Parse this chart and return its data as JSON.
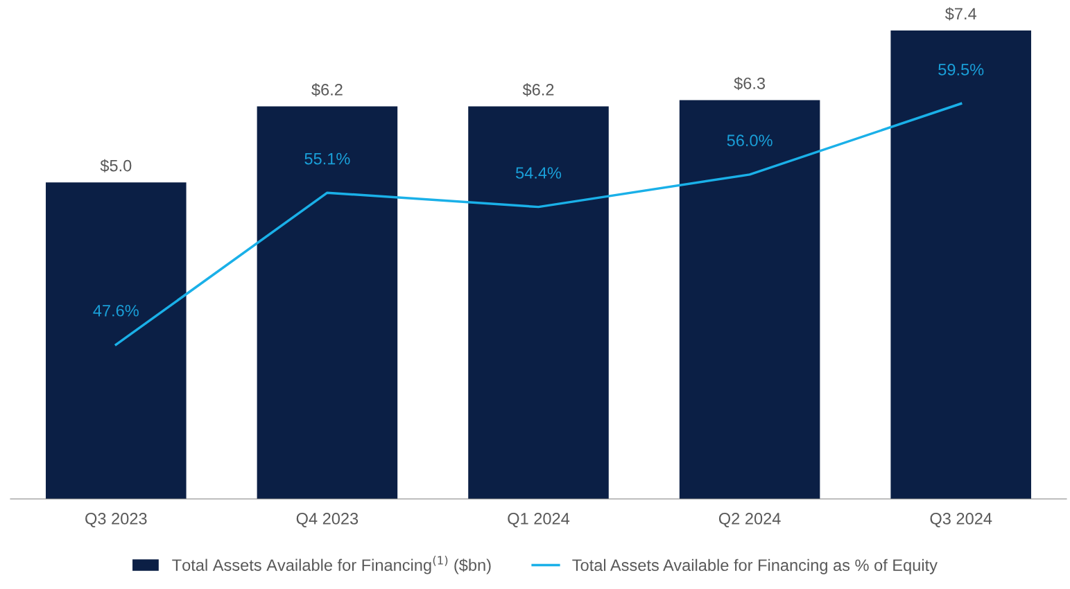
{
  "chart_data": {
    "type": "bar",
    "categories": [
      "Q3 2023",
      "Q4 2023",
      "Q1 2024",
      "Q2 2024",
      "Q3 2024"
    ],
    "series": [
      {
        "name": "Total Assets Available for Financing$^{(1)}$ ($bn)",
        "color": "#0b1f45",
        "values": [
          5.0,
          6.2,
          6.2,
          6.3,
          7.4
        ],
        "value_labels": [
          "$5.0",
          "$6.2",
          "$6.2",
          "$6.3",
          "$7.4"
        ]
      },
      {
        "name": "Total Assets Available for Financing as % of Equity",
        "type": "line",
        "axis": "y2",
        "color": "#1ab0e8",
        "values": [
          47.6,
          55.1,
          54.4,
          56.0,
          59.5
        ],
        "value_labels": [
          "47.6%",
          "55.1%",
          "54.4%",
          "56.0%",
          "59.5%"
        ]
      }
    ],
    "tick_labels": "x",
    "grid": false,
    "legend": "bottom",
    "marker": "none",
    "line_style": "solid"
  }
}
